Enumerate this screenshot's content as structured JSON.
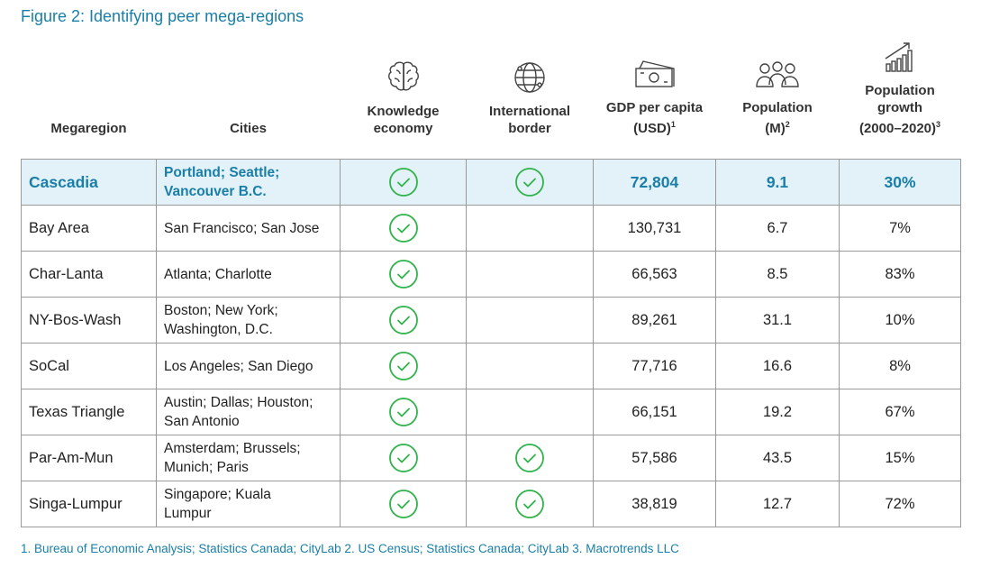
{
  "title": "Figure 2: Identifying peer mega-regions",
  "footnote": "1. Bureau of Economic Analysis; Statistics Canada; CityLab 2. US Census; Statistics Canada; CityLab 3. Macrotrends LLC",
  "colors": {
    "accent": "#1a7fa8",
    "check": "#2fb34a",
    "highlight_bg": "#e3f1f8"
  },
  "headers": {
    "megaregion": "Megaregion",
    "cities": "Cities",
    "knowledge": {
      "label1": "Knowledge",
      "label2": "economy",
      "icon": "brain-icon"
    },
    "border": {
      "label1": "International",
      "label2": "border",
      "icon": "globe-icon"
    },
    "gdp": {
      "label1": "GDP per capita",
      "label2": "(USD)",
      "sup": "1",
      "icon": "money-icon"
    },
    "population": {
      "label1": "Population",
      "label2": "(M)",
      "sup": "2",
      "icon": "people-icon"
    },
    "growth": {
      "label1": "Population",
      "label2": "growth",
      "label3": "(2000–2020)",
      "sup": "3",
      "icon": "bar-growth-icon"
    }
  },
  "rows": [
    {
      "megaregion": "Cascadia",
      "cities1": "Portland; Seattle;",
      "cities2": "Vancouver B.C.",
      "knowledge": true,
      "border": true,
      "gdp": "72,804",
      "population": "9.1",
      "growth": "30%"
    },
    {
      "megaregion": "Bay Area",
      "cities1": "San Francisco; San Jose",
      "cities2": "",
      "knowledge": true,
      "border": false,
      "gdp": "130,731",
      "population": "6.7",
      "growth": "7%"
    },
    {
      "megaregion": "Char-Lanta",
      "cities1": "Atlanta; Charlotte",
      "cities2": "",
      "knowledge": true,
      "border": false,
      "gdp": "66,563",
      "population": "8.5",
      "growth": "83%"
    },
    {
      "megaregion": "NY-Bos-Wash",
      "cities1": "Boston; New York;",
      "cities2": "Washington, D.C.",
      "knowledge": true,
      "border": false,
      "gdp": "89,261",
      "population": "31.1",
      "growth": "10%"
    },
    {
      "megaregion": "SoCal",
      "cities1": "Los Angeles; San Diego",
      "cities2": "",
      "knowledge": true,
      "border": false,
      "gdp": "77,716",
      "population": "16.6",
      "growth": "8%"
    },
    {
      "megaregion": "Texas Triangle",
      "cities1": "Austin; Dallas; Houston;",
      "cities2": "San Antonio",
      "knowledge": true,
      "border": false,
      "gdp": "66,151",
      "population": "19.2",
      "growth": "67%"
    },
    {
      "megaregion": "Par-Am-Mun",
      "cities1": "Amsterdam; Brussels;",
      "cities2": "Munich; Paris",
      "knowledge": true,
      "border": true,
      "gdp": "57,586",
      "population": "43.5",
      "growth": "15%"
    },
    {
      "megaregion": "Singa-Lumpur",
      "cities1": "Singapore; Kuala",
      "cities2": "Lumpur",
      "knowledge": true,
      "border": true,
      "gdp": "38,819",
      "population": "12.7",
      "growth": "72%"
    }
  ]
}
